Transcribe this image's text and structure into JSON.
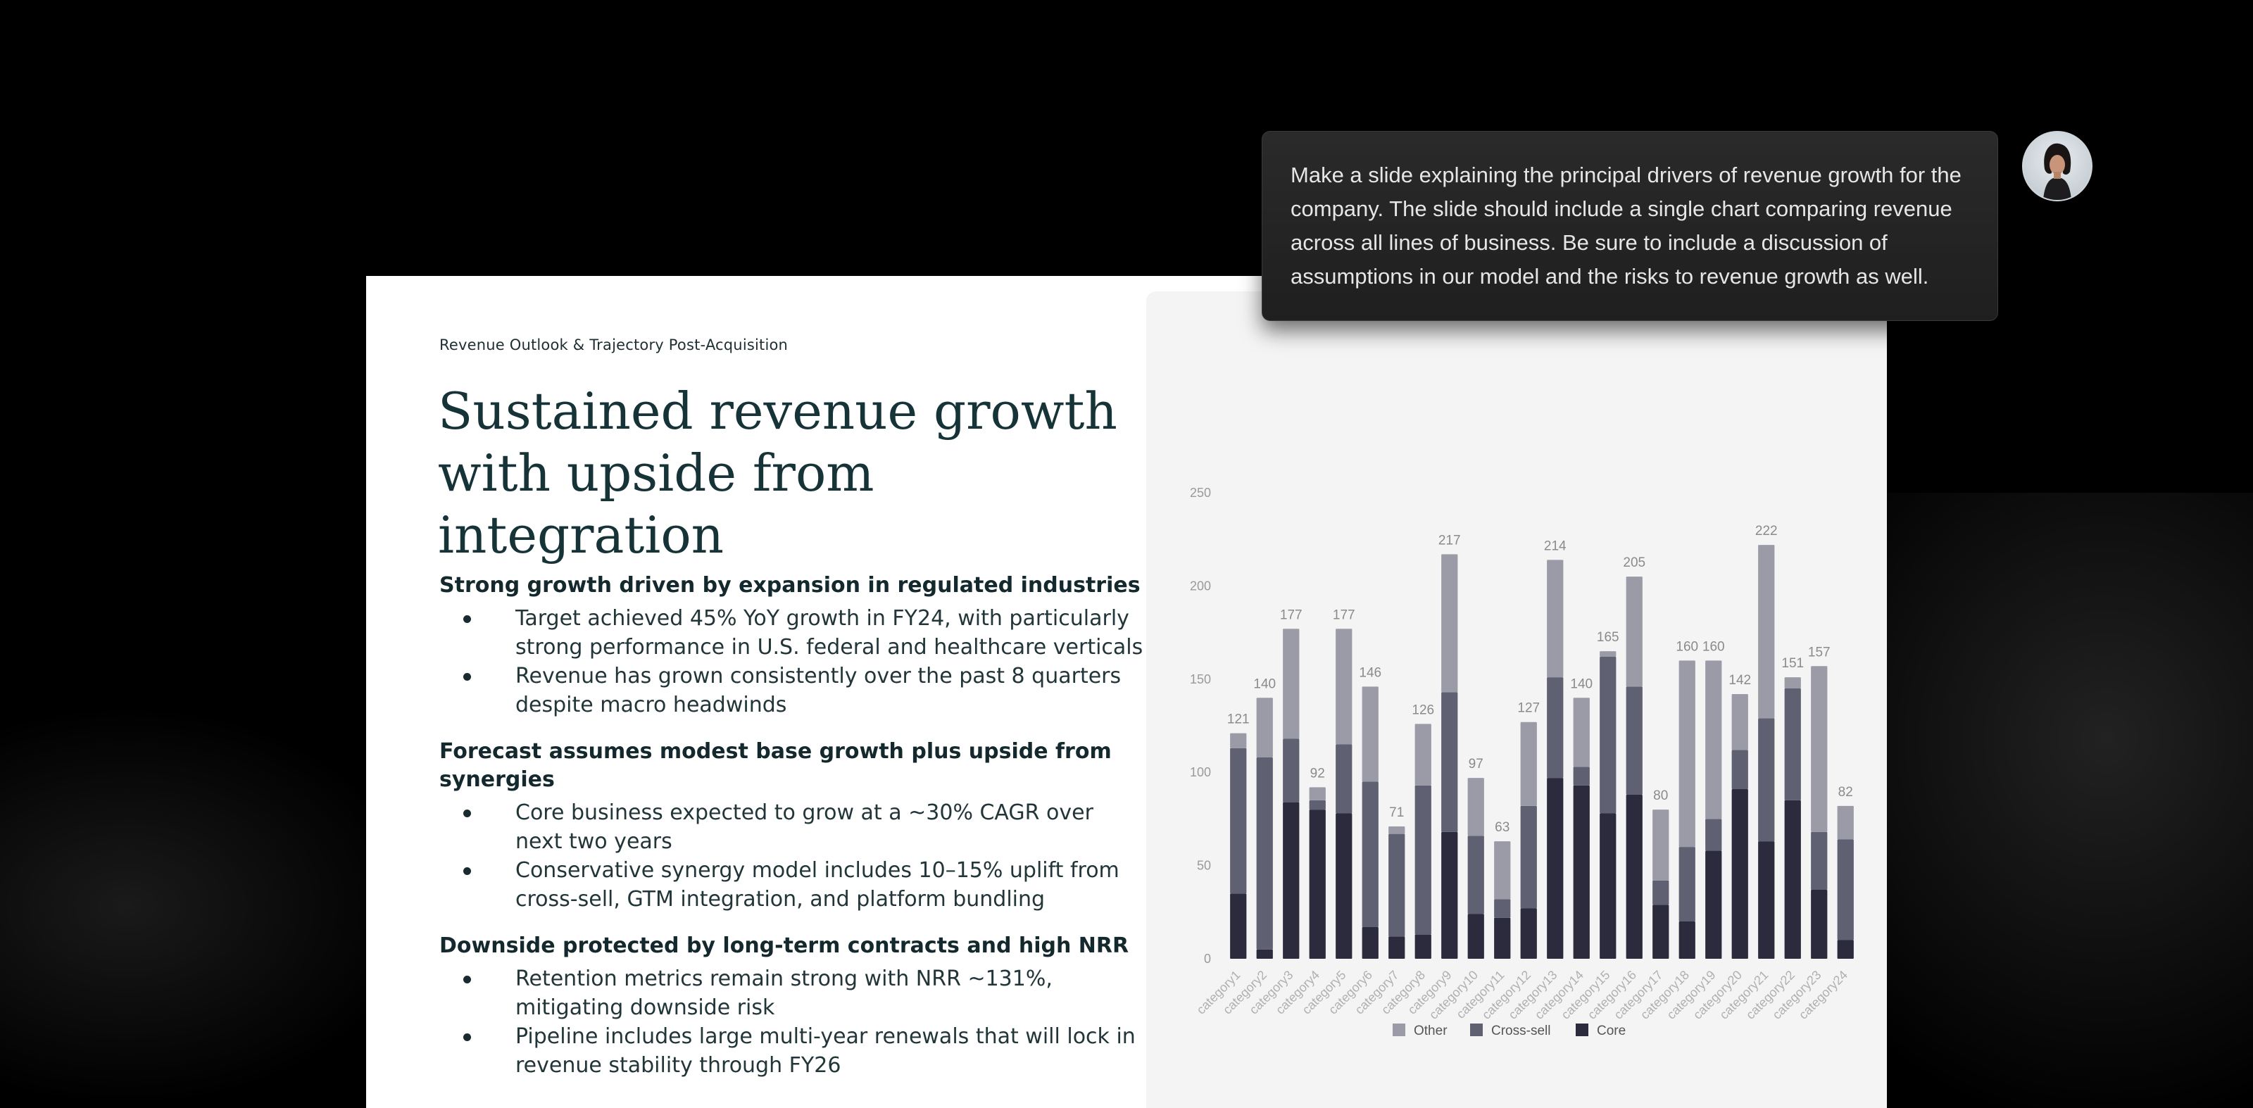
{
  "slide": {
    "eyebrow": "Revenue Outlook & Trajectory Post-Acquisition",
    "title": "Sustained revenue growth with upside from integration",
    "sections": [
      {
        "heading": "Strong growth driven by expansion in regulated industries",
        "bullets": [
          "Target achieved 45% YoY growth in FY24, with particularly strong performance in U.S. federal and healthcare verticals",
          "Revenue has grown consistently over the past 8 quarters despite macro headwinds"
        ]
      },
      {
        "heading": "Forecast assumes modest base growth plus upside from synergies",
        "bullets": [
          "Core business expected to grow at a ~30% CAGR over next two years",
          "Conservative synergy model includes 10–15% uplift from cross-sell, GTM integration, and platform bundling"
        ]
      },
      {
        "heading": "Downside protected by long-term contracts and high NRR",
        "bullets": [
          "Retention metrics remain strong with NRR ~131%, mitigating downside risk",
          "Pipeline includes large multi-year renewals that will lock in revenue stability through FY26"
        ]
      }
    ]
  },
  "prompt": {
    "text": "Make a slide explaining the principal drivers of revenue growth for the company. The slide should include a single chart comparing revenue across all lines of business. Be sure to include a discussion of assumptions in our model and the risks to revenue growth as well."
  },
  "avatar": {
    "icon": "user-avatar"
  },
  "colors": {
    "core": "#2b2b3d",
    "cross_sell": "#5f6072",
    "other": "#9a9ba6"
  },
  "chart_data": {
    "type": "bar",
    "stacked": true,
    "categories": [
      "category1",
      "category2",
      "category3",
      "category4",
      "category5",
      "category6",
      "category7",
      "category8",
      "category9",
      "category10",
      "category11",
      "category12",
      "category13",
      "category14",
      "category15",
      "category16",
      "category17",
      "category18",
      "category19",
      "category20",
      "category21",
      "category22",
      "category23",
      "category24"
    ],
    "series": [
      {
        "name": "Core",
        "values": [
          35,
          5,
          84,
          80,
          78,
          17,
          12,
          13,
          68,
          24,
          22,
          27,
          97,
          93,
          78,
          88,
          29,
          20,
          58,
          91,
          63,
          85,
          37,
          10
        ]
      },
      {
        "name": "Cross-sell",
        "values": [
          78,
          103,
          34,
          5,
          37,
          78,
          55,
          80,
          75,
          42,
          10,
          55,
          54,
          10,
          84,
          58,
          13,
          40,
          17,
          21,
          66,
          60,
          31,
          54
        ]
      },
      {
        "name": "Other",
        "values": [
          8,
          32,
          59,
          7,
          62,
          51,
          4,
          33,
          74,
          31,
          31,
          45,
          63,
          37,
          3,
          59,
          38,
          100,
          85,
          30,
          93,
          6,
          89,
          18
        ]
      }
    ],
    "totals": [
      121,
      140,
      177,
      92,
      177,
      146,
      71,
      126,
      217,
      97,
      63,
      127,
      214,
      140,
      165,
      205,
      80,
      160,
      160,
      142,
      222,
      151,
      157,
      82
    ],
    "yticks": [
      0,
      50,
      100,
      150,
      200,
      250
    ],
    "ylim": [
      0,
      250
    ],
    "legend": [
      "Other",
      "Cross-sell",
      "Core"
    ],
    "legend_position": "bottom-center"
  }
}
